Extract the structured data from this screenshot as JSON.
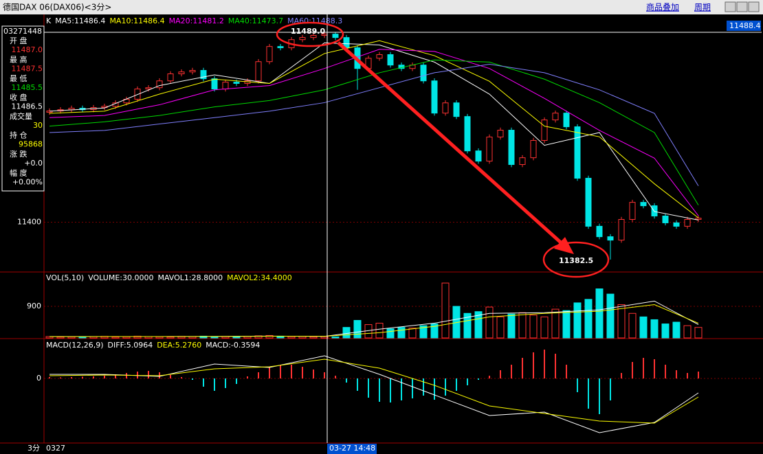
{
  "ui": {
    "window_title": "德国DAX 06(DAX06)<3分>",
    "menu": [
      "商品叠加",
      "周期"
    ],
    "period": "3分",
    "date_start": "0327",
    "cursor_time": "03-27 14:48",
    "info_panel": {
      "time": "03271448",
      "rows": [
        {
          "label": "开 盘",
          "value": "11487.0"
        },
        {
          "label": "最 高",
          "value": "11487.5"
        },
        {
          "label": "最 低",
          "value": "11485.5"
        },
        {
          "label": "收 盘",
          "value": "11486.5"
        },
        {
          "label": "成交量",
          "value": "30"
        },
        {
          "label": "持 仓",
          "value": "95868"
        },
        {
          "label": "涨 跌",
          "value": "+0.0"
        },
        {
          "label": "幅 度",
          "value": "+0.00%"
        }
      ]
    }
  },
  "chart_data": [
    {
      "type": "candlestick",
      "label": "K",
      "up_color": "#ff3232",
      "down_color": "#00e5e5",
      "last_price_label": "11488.4",
      "annotations": [
        "11489.0",
        "11382.5"
      ],
      "ylim": [
        11377,
        11497
      ],
      "yticks": [
        11400
      ],
      "grid": true,
      "open": [
        11451.5,
        11452.1,
        11452.7,
        11453.4,
        11452.7,
        11453.7,
        11454.3,
        11455.9,
        11457.6,
        11462.4,
        11463.0,
        11466.2,
        11469.5,
        11470.4,
        11471.1,
        11467.2,
        11462.4,
        11465.6,
        11465.0,
        11466.2,
        11475.2,
        11482.3,
        11481.7,
        11485.5,
        11486.5,
        11487.5,
        11488.1,
        11486.5,
        11481.7,
        11472.0,
        11476.8,
        11478.5,
        11473.6,
        11472.0,
        11473.6,
        11466.2,
        11451.1,
        11455.9,
        11449.5,
        11433.4,
        11428.6,
        11439.9,
        11443.1,
        11427.0,
        11430.2,
        11438.3,
        11447.9,
        11451.1,
        11444.7,
        11420.6,
        11398.1,
        11393.2,
        11391.6,
        11401.3,
        11409.3,
        11407.7,
        11402.9,
        11399.7,
        11398.1,
        11401.3
      ],
      "high": [
        11453.3,
        11453.9,
        11454.6,
        11454.6,
        11454.9,
        11455.5,
        11457.1,
        11458.8,
        11463.6,
        11464.2,
        11467.4,
        11470.7,
        11471.6,
        11472.3,
        11472.3,
        11468.4,
        11466.8,
        11466.8,
        11467.4,
        11476.4,
        11483.5,
        11483.5,
        11486.7,
        11487.7,
        11488.7,
        11489.0,
        11488.8,
        11487.7,
        11482.9,
        11478.0,
        11479.7,
        11479.7,
        11474.8,
        11474.8,
        11474.8,
        11467.4,
        11457.1,
        11457.1,
        11450.7,
        11434.6,
        11441.1,
        11444.3,
        11444.3,
        11431.4,
        11439.5,
        11449.1,
        11452.3,
        11452.3,
        11445.9,
        11421.8,
        11399.3,
        11394.4,
        11402.5,
        11410.5,
        11410.5,
        11408.9,
        11404.1,
        11400.9,
        11402.5,
        11403.1
      ],
      "low": [
        11450.3,
        11450.9,
        11451.5,
        11451.5,
        11451.5,
        11452.5,
        11453.1,
        11454.7,
        11456.4,
        11461.2,
        11461.8,
        11465.0,
        11468.3,
        11469.2,
        11466.0,
        11461.2,
        11461.2,
        11463.8,
        11463.8,
        11465.0,
        11474.0,
        11480.5,
        11480.5,
        11484.3,
        11485.3,
        11486.3,
        11485.3,
        11480.5,
        11462.0,
        11470.8,
        11475.6,
        11472.4,
        11470.8,
        11470.8,
        11465.0,
        11449.9,
        11449.9,
        11448.3,
        11432.2,
        11427.4,
        11427.4,
        11438.7,
        11425.8,
        11425.8,
        11429.0,
        11437.1,
        11446.7,
        11443.5,
        11419.4,
        11396.9,
        11392.0,
        11382.5,
        11390.4,
        11400.1,
        11406.5,
        11401.7,
        11398.5,
        11396.9,
        11396.9,
        11400.1
      ],
      "close": [
        11452.1,
        11452.7,
        11453.4,
        11452.7,
        11453.7,
        11454.3,
        11455.9,
        11457.6,
        11462.4,
        11463.0,
        11466.2,
        11469.5,
        11470.4,
        11471.1,
        11467.2,
        11462.4,
        11465.6,
        11465.0,
        11466.2,
        11475.2,
        11482.3,
        11481.7,
        11485.5,
        11486.5,
        11487.5,
        11488.1,
        11486.5,
        11481.7,
        11472.0,
        11476.8,
        11478.5,
        11473.6,
        11472.0,
        11473.6,
        11466.2,
        11451.1,
        11455.9,
        11449.5,
        11433.4,
        11428.6,
        11439.9,
        11443.1,
        11427.0,
        11430.2,
        11438.3,
        11447.9,
        11451.1,
        11444.7,
        11420.6,
        11398.1,
        11393.2,
        11391.6,
        11401.3,
        11409.3,
        11407.7,
        11402.9,
        11399.7,
        11398.1,
        11401.3,
        11401.9
      ],
      "series": [
        {
          "name": "MA5:11486.4",
          "color": "#ffffff",
          "x": [
            0,
            5,
            10,
            15,
            20,
            25,
            30,
            35,
            40,
            45,
            50,
            55,
            59
          ],
          "values": [
            11452,
            11453.5,
            11464,
            11469,
            11465,
            11484,
            11483,
            11475,
            11460,
            11436,
            11442,
            11405,
            11401
          ]
        },
        {
          "name": "MA10:11486.4",
          "color": "#ffff00",
          "x": [
            0,
            5,
            10,
            15,
            20,
            25,
            30,
            35,
            40,
            45,
            50,
            55,
            59
          ],
          "values": [
            11451,
            11452,
            11460,
            11467,
            11465,
            11479,
            11485,
            11478,
            11466,
            11445,
            11440,
            11418,
            11402
          ]
        },
        {
          "name": "MA20:11481.2",
          "color": "#ff00ff",
          "x": [
            0,
            5,
            10,
            15,
            20,
            25,
            30,
            35,
            40,
            45,
            50,
            55,
            59
          ],
          "values": [
            11449,
            11450,
            11455,
            11462,
            11464,
            11472,
            11481,
            11480,
            11472,
            11458,
            11443,
            11430,
            11403
          ]
        },
        {
          "name": "MA40:11473.7",
          "color": "#00dd00",
          "x": [
            0,
            5,
            10,
            15,
            20,
            25,
            30,
            35,
            40,
            45,
            50,
            55,
            59
          ],
          "values": [
            11445,
            11447,
            11450,
            11454,
            11457,
            11462,
            11470,
            11476,
            11475,
            11467,
            11456,
            11442,
            11408
          ]
        },
        {
          "name": "MA60:11488.3",
          "color": "#8080ff",
          "x": [
            0,
            5,
            10,
            15,
            20,
            25,
            30,
            35,
            40,
            45,
            50,
            55,
            59
          ],
          "values": [
            11442,
            11443,
            11446,
            11449,
            11452,
            11456,
            11463,
            11470,
            11474,
            11470,
            11462,
            11451,
            11417
          ]
        }
      ]
    },
    {
      "type": "volume",
      "label": "VOL(5,10)",
      "current": "VOLUME:30.0000",
      "ylim": [
        0,
        1860
      ],
      "yticks": [
        900
      ],
      "values": [
        40,
        30,
        35,
        30,
        40,
        45,
        30,
        35,
        50,
        40,
        35,
        30,
        45,
        40,
        50,
        35,
        40,
        30,
        45,
        60,
        70,
        50,
        40,
        45,
        35,
        40,
        30,
        300,
        500,
        380,
        420,
        260,
        300,
        280,
        350,
        400,
        1565,
        900,
        700,
        750,
        880,
        600,
        680,
        720,
        650,
        600,
        820,
        780,
        1000,
        1100,
        1400,
        1250,
        950,
        700,
        600,
        520,
        400,
        450,
        350,
        300
      ],
      "series": [
        {
          "name": "MAVOL1:28.8000",
          "color": "#ffffff",
          "x": [
            0,
            5,
            10,
            15,
            20,
            25,
            30,
            35,
            40,
            45,
            50,
            55,
            59
          ],
          "values": [
            38,
            40,
            40,
            42,
            52,
            45,
            250,
            420,
            700,
            720,
            800,
            1050,
            380
          ]
        },
        {
          "name": "MAVOL2:34.4000",
          "color": "#ffff00",
          "x": [
            0,
            5,
            10,
            15,
            20,
            25,
            30,
            35,
            40,
            45,
            50,
            55,
            59
          ],
          "values": [
            36,
            38,
            40,
            41,
            48,
            46,
            150,
            330,
            600,
            700,
            760,
            950,
            420
          ]
        }
      ]
    },
    {
      "type": "macd",
      "label": "MACD(12,26,9)",
      "current": "MACD:-0.3594",
      "ylim": [
        -18.8,
        11.4
      ],
      "yticks": [
        0
      ],
      "values": [
        0.4,
        0.3,
        0.4,
        0.5,
        0.6,
        0.8,
        1.2,
        1.6,
        2.0,
        2.2,
        1.8,
        1.0,
        0.4,
        -0.4,
        -2.4,
        -3.6,
        -2.8,
        -1.6,
        0.6,
        1.8,
        3.2,
        3.8,
        4.0,
        3.4,
        2.6,
        1.8,
        0.8,
        -1.2,
        -3.6,
        -5.6,
        -6.8,
        -7.0,
        -6.4,
        -5.8,
        -5.0,
        -6.2,
        -5.0,
        -3.6,
        -2.0,
        -0.4,
        0.8,
        2.4,
        4.0,
        6.0,
        7.6,
        8.4,
        7.2,
        4.0,
        -4.0,
        -8.8,
        -10.4,
        -6.4,
        1.6,
        4.8,
        6.0,
        5.6,
        4.0,
        2.4,
        1.6,
        2.0
      ],
      "series": [
        {
          "name": "DIFF:5.0964",
          "color": "#ffffff",
          "x": [
            0,
            5,
            10,
            15,
            20,
            25,
            30,
            35,
            40,
            45,
            50,
            55,
            59
          ],
          "values": [
            1.2,
            1.2,
            0.6,
            4.2,
            3.2,
            6.6,
            1.2,
            -4.8,
            -10.8,
            -9.8,
            -15.8,
            -12.8,
            -4.2
          ]
        },
        {
          "name": "DEA:5.2760",
          "color": "#ffff00",
          "x": [
            0,
            5,
            10,
            15,
            20,
            25,
            30,
            35,
            40,
            45,
            50,
            55,
            59
          ],
          "values": [
            0.8,
            1.0,
            0.8,
            2.8,
            3.4,
            5.6,
            3.0,
            -2.0,
            -8.0,
            -10.2,
            -12.4,
            -13.0,
            -5.4
          ]
        }
      ]
    }
  ]
}
